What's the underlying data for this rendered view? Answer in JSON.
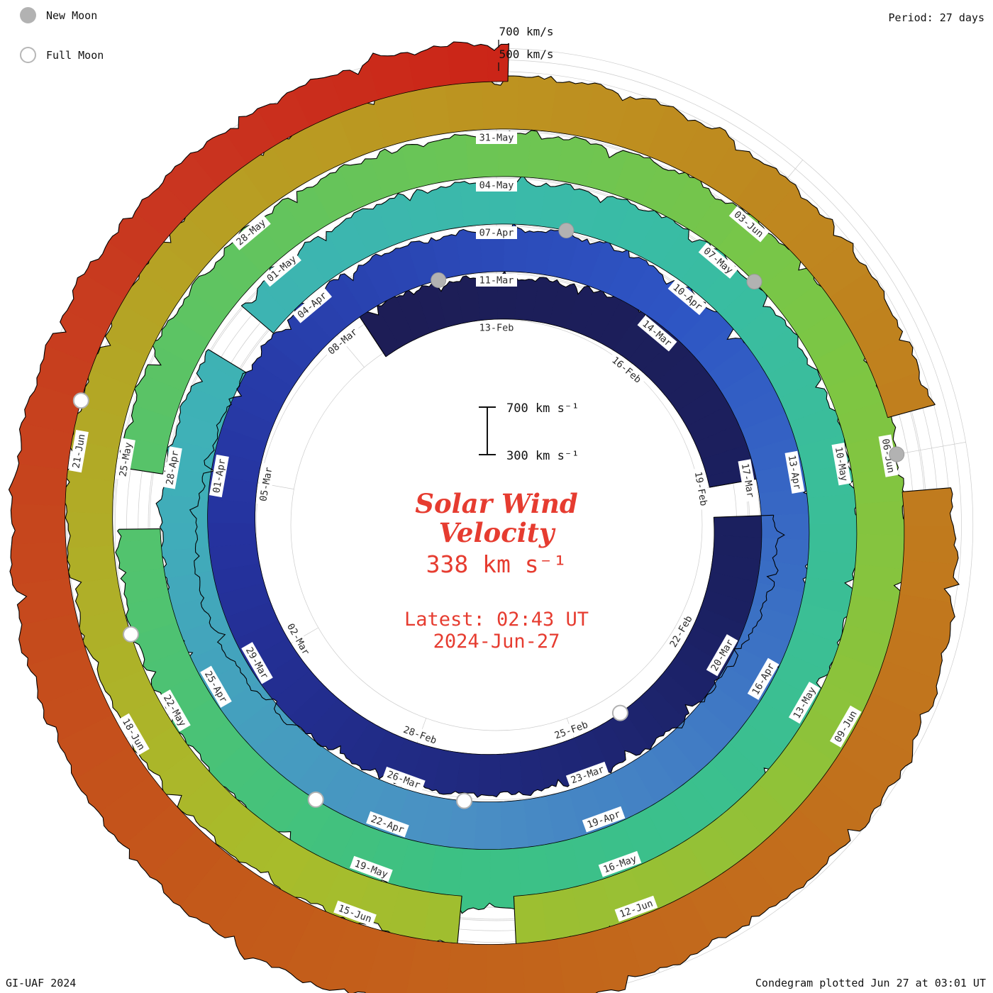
{
  "header": {
    "period": "Period: 27 days"
  },
  "legend": {
    "new_moon": "New Moon",
    "full_moon": "Full Moon"
  },
  "footer": {
    "credit": "GI-UAF 2024",
    "plotted": "Condegram plotted Jun 27 at 03:01 UT"
  },
  "center": {
    "title_line1": "Solar Wind",
    "title_line2": "Velocity",
    "current_value": "338 km s⁻¹",
    "latest_line1": "Latest: 02:43 UT",
    "latest_line2": "2024-Jun-27"
  },
  "scale": {
    "ring_labels": [
      "700 km/s",
      "500 km/s"
    ],
    "bar_top": "700 km s⁻¹",
    "bar_bottom": "300 km s⁻¹"
  },
  "chart_data": {
    "type": "area",
    "layout": "polar spiral, clockwise, one turn = 27 days, 2024-Feb-13 at top, radius grows outward with time; band thickness = solar wind speed (0 km/s at base circle, 0.1625 px per km/s)",
    "title": "Solar Wind Velocity",
    "units": "km/s",
    "period_days": 27,
    "start_date": "2024-02-10 12:00 UT",
    "epoch_top_date": "2024-02-13 00:00 UT",
    "end_date": "2024-06-27 02:43 UT",
    "current_velocity_kms": 338,
    "ring_velocities": [
      300,
      400,
      500,
      600,
      700
    ],
    "date_labels": [
      {
        "d": 0,
        "t": "13-Feb"
      },
      {
        "d": 3,
        "t": "16-Feb"
      },
      {
        "d": 6,
        "t": "19-Feb"
      },
      {
        "d": 9,
        "t": "22-Feb"
      },
      {
        "d": 12,
        "t": "25-Feb"
      },
      {
        "d": 15,
        "t": "28-Feb"
      },
      {
        "d": 18,
        "t": "02-Mar"
      },
      {
        "d": 21,
        "t": "05-Mar"
      },
      {
        "d": 24,
        "t": "08-Mar"
      },
      {
        "d": 27,
        "t": "11-Mar"
      },
      {
        "d": 30,
        "t": "14-Mar"
      },
      {
        "d": 33,
        "t": "17-Mar"
      },
      {
        "d": 36,
        "t": "20-Mar"
      },
      {
        "d": 39,
        "t": "23-Mar"
      },
      {
        "d": 42,
        "t": "26-Mar"
      },
      {
        "d": 45,
        "t": "29-Mar"
      },
      {
        "d": 48,
        "t": "01-Apr"
      },
      {
        "d": 51,
        "t": "04-Apr"
      },
      {
        "d": 54,
        "t": "07-Apr"
      },
      {
        "d": 57,
        "t": "10-Apr"
      },
      {
        "d": 60,
        "t": "13-Apr"
      },
      {
        "d": 63,
        "t": "16-Apr"
      },
      {
        "d": 66,
        "t": "19-Apr"
      },
      {
        "d": 69,
        "t": "22-Apr"
      },
      {
        "d": 72,
        "t": "25-Apr"
      },
      {
        "d": 75,
        "t": "28-Apr"
      },
      {
        "d": 78,
        "t": "01-May"
      },
      {
        "d": 81,
        "t": "04-May"
      },
      {
        "d": 84,
        "t": "07-May"
      },
      {
        "d": 87,
        "t": "10-May"
      },
      {
        "d": 90,
        "t": "13-May"
      },
      {
        "d": 93,
        "t": "16-May"
      },
      {
        "d": 96,
        "t": "19-May"
      },
      {
        "d": 99,
        "t": "22-May"
      },
      {
        "d": 102,
        "t": "25-May"
      },
      {
        "d": 105,
        "t": "28-May"
      },
      {
        "d": 108,
        "t": "31-May"
      },
      {
        "d": 111,
        "t": "03-Jun"
      },
      {
        "d": 114,
        "t": "06-Jun"
      },
      {
        "d": 117,
        "t": "09-Jun"
      },
      {
        "d": 120,
        "t": "12-Jun"
      },
      {
        "d": 123,
        "t": "15-Jun"
      },
      {
        "d": 126,
        "t": "18-Jun"
      },
      {
        "d": 129,
        "t": "21-Jun"
      }
    ],
    "velocity_daily": {
      "start_day": -2.5,
      "step_days": 1,
      "values": [
        420,
        390,
        370,
        360,
        380,
        430,
        560,
        640,
        600,
        520,
        560,
        480,
        420,
        390,
        370,
        360,
        350,
        360,
        370,
        400,
        470,
        540,
        560,
        500,
        440,
        410,
        390,
        380,
        370,
        360,
        370,
        390,
        380,
        400,
        430,
        470,
        450,
        430,
        460,
        500,
        540,
        580,
        600,
        660,
        690,
        660,
        580,
        500,
        450,
        420,
        400,
        380,
        365,
        355,
        365,
        380,
        370,
        365,
        380,
        400,
        390,
        380,
        400,
        430,
        420,
        410,
        440,
        480,
        530,
        560,
        520,
        470,
        440,
        420,
        400,
        390,
        380,
        370,
        375,
        385,
        380,
        375,
        370,
        365,
        370,
        380,
        390,
        410,
        440,
        430,
        420,
        450,
        490,
        520,
        500,
        470,
        440,
        430,
        420,
        400,
        390,
        385,
        380,
        390,
        400,
        410,
        420,
        430,
        440,
        430,
        440,
        450,
        460,
        440,
        420,
        400,
        390,
        420,
        470,
        520,
        540,
        500,
        480,
        520,
        560,
        600,
        630,
        610,
        570,
        530,
        490,
        460,
        430,
        400,
        370,
        345,
        338,
        338,
        338
      ]
    },
    "gaps_days": [
      [
        6.0,
        6.6
      ],
      [
        49.6,
        50.3
      ],
      [
        74.2,
        74.9
      ],
      [
        94.3,
        94.9
      ],
      [
        113.6,
        114.4
      ]
    ],
    "moons": [
      {
        "type": "full",
        "day": 11,
        "date": "24-Feb"
      },
      {
        "type": "new",
        "day": 26,
        "date": "10-Mar"
      },
      {
        "type": "full",
        "day": 41,
        "date": "25-Mar"
      },
      {
        "type": "new",
        "day": 55,
        "date": "08-Apr"
      },
      {
        "type": "full",
        "day": 70,
        "date": "23-Apr"
      },
      {
        "type": "new",
        "day": 84.5,
        "date": "08-May"
      },
      {
        "type": "full",
        "day": 100,
        "date": "23-May"
      },
      {
        "type": "new",
        "day": 114,
        "date": "06-Jun"
      },
      {
        "type": "full",
        "day": 129.5,
        "date": "21-Jun"
      }
    ],
    "color_stops": [
      {
        "day": -3,
        "c": "#1d1d55"
      },
      {
        "day": 8,
        "c": "#1b2060"
      },
      {
        "day": 20,
        "c": "#25329e"
      },
      {
        "day": 30,
        "c": "#2e55c4"
      },
      {
        "day": 41,
        "c": "#4a8fc4"
      },
      {
        "day": 48,
        "c": "#3fb0b8"
      },
      {
        "day": 56,
        "c": "#39bca5"
      },
      {
        "day": 68,
        "c": "#3cc184"
      },
      {
        "day": 78,
        "c": "#62c45e"
      },
      {
        "day": 86,
        "c": "#7dc643"
      },
      {
        "day": 97,
        "c": "#a8bc2b"
      },
      {
        "day": 108,
        "c": "#bd9320"
      },
      {
        "day": 116,
        "c": "#c1761d"
      },
      {
        "day": 124,
        "c": "#c35a1a"
      },
      {
        "day": 132,
        "c": "#c93420"
      },
      {
        "day": 136,
        "c": "#cc2015"
      }
    ],
    "accent_text_color": "#e63c30",
    "grid_color": "#cccccc",
    "moon_marker_color": "#b2b2b2"
  }
}
